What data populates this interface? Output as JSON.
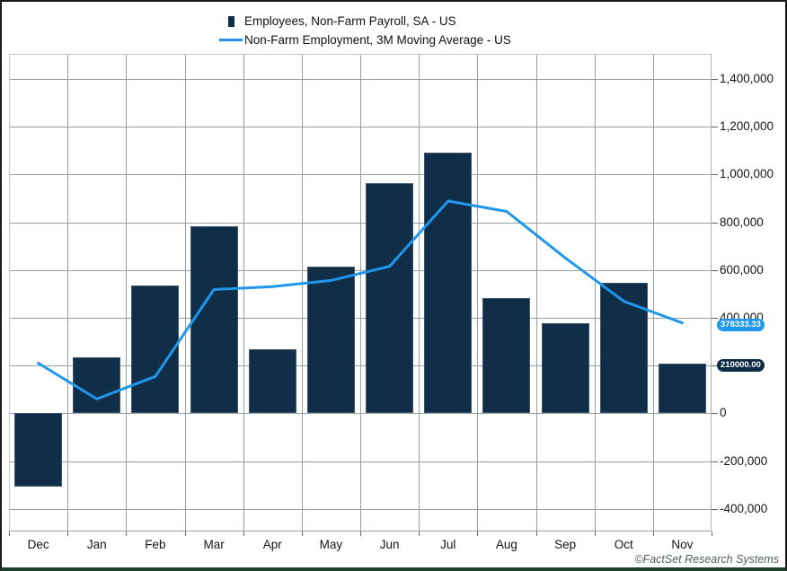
{
  "legend": {
    "items": [
      {
        "label": "Employees, Non-Farm Payroll, SA - US",
        "marker": "bar-swatch",
        "color": "#112e48"
      },
      {
        "label": "Non-Farm Employment, 3M Moving Average - US",
        "marker": "line-swatch",
        "color": "#1e97ed"
      }
    ]
  },
  "footer": {
    "copyright": "©FactSet Research Systems"
  },
  "chart_data": {
    "type": "bar",
    "title": "",
    "categories": [
      "Dec",
      "Jan",
      "Feb",
      "Mar",
      "Apr",
      "May",
      "Jun",
      "Jul",
      "Aug",
      "Sep",
      "Oct",
      "Nov"
    ],
    "series": [
      {
        "name": "Employees, Non-Farm Payroll, SA - US",
        "type": "bar",
        "color": "#112e48",
        "values": [
          -306000,
          233000,
          536000,
          785000,
          269000,
          614000,
          962000,
          1091000,
          483000,
          379000,
          546000,
          210000
        ]
      },
      {
        "name": "Non-Farm Employment, 3M Moving Average - US",
        "type": "line",
        "color": "#1e97ed",
        "values": [
          210000,
          60000,
          154333,
          518000,
          530000,
          556000,
          615000,
          889000,
          845333,
          651000,
          469333,
          378333.33
        ]
      }
    ],
    "xlabel": "",
    "ylabel": "",
    "y_axis": {
      "side": "right",
      "min": -495000,
      "max": 1505000,
      "grid": true,
      "ticks": [
        {
          "value": 1400000,
          "label": "1,400,000"
        },
        {
          "value": 1200000,
          "label": "1,200,000"
        },
        {
          "value": 1000000,
          "label": "1,000,000"
        },
        {
          "value": 800000,
          "label": "800,000"
        },
        {
          "value": 600000,
          "label": "600,000"
        },
        {
          "value": 400000,
          "label": "400,000"
        },
        {
          "value": 200000,
          "label": "200,000"
        },
        {
          "value": 0,
          "label": "0"
        },
        {
          "value": -200000,
          "label": "-200,000"
        },
        {
          "value": -400000,
          "label": "-400,000"
        }
      ]
    },
    "last_value_badges": [
      {
        "series": "line",
        "text": "378333.33",
        "value": 378333.33,
        "color": "#1e97ed"
      },
      {
        "series": "bar",
        "text": "210000.00",
        "value": 210000,
        "color": "#0e2b46"
      }
    ],
    "legend_position": "top"
  }
}
